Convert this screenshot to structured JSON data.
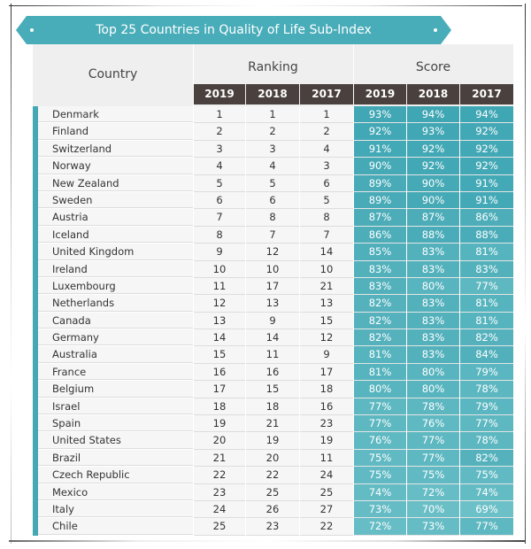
{
  "title": "Top 25 Countries in Quality of Life Sub-Index",
  "headers": {
    "country": "Country",
    "ranking": "Ranking",
    "score": "Score",
    "years": [
      "2019",
      "2018",
      "2017"
    ]
  },
  "colors": {
    "accent": "#49adb9",
    "header_dark": "#4a403d",
    "score_high": "#3fa6b3",
    "score_low": "#6cc0c8"
  },
  "chart_data": {
    "type": "table",
    "title": "Top 25 Countries in Quality of Life Sub-Index",
    "columns": [
      "Country",
      "Ranking 2019",
      "Ranking 2018",
      "Ranking 2017",
      "Score 2019",
      "Score 2018",
      "Score 2017"
    ],
    "rows": [
      [
        "Denmark",
        1,
        1,
        1,
        "93%",
        "94%",
        "94%"
      ],
      [
        "Finland",
        2,
        2,
        2,
        "92%",
        "93%",
        "92%"
      ],
      [
        "Switzerland",
        3,
        3,
        4,
        "91%",
        "92%",
        "92%"
      ],
      [
        "Norway",
        4,
        4,
        3,
        "90%",
        "92%",
        "92%"
      ],
      [
        "New Zealand",
        5,
        5,
        6,
        "89%",
        "90%",
        "91%"
      ],
      [
        "Sweden",
        6,
        6,
        5,
        "89%",
        "90%",
        "91%"
      ],
      [
        "Austria",
        7,
        8,
        8,
        "87%",
        "87%",
        "86%"
      ],
      [
        "Iceland",
        8,
        7,
        7,
        "86%",
        "88%",
        "88%"
      ],
      [
        "United Kingdom",
        9,
        12,
        14,
        "85%",
        "83%",
        "81%"
      ],
      [
        "Ireland",
        10,
        10,
        10,
        "83%",
        "83%",
        "83%"
      ],
      [
        "Luxembourg",
        11,
        17,
        21,
        "83%",
        "80%",
        "77%"
      ],
      [
        "Netherlands",
        12,
        13,
        13,
        "82%",
        "83%",
        "81%"
      ],
      [
        "Canada",
        13,
        9,
        15,
        "82%",
        "83%",
        "81%"
      ],
      [
        "Germany",
        14,
        14,
        12,
        "82%",
        "83%",
        "82%"
      ],
      [
        "Australia",
        15,
        11,
        9,
        "81%",
        "83%",
        "84%"
      ],
      [
        "France",
        16,
        16,
        17,
        "81%",
        "80%",
        "79%"
      ],
      [
        "Belgium",
        17,
        15,
        18,
        "80%",
        "80%",
        "78%"
      ],
      [
        "Israel",
        18,
        18,
        16,
        "77%",
        "78%",
        "79%"
      ],
      [
        "Spain",
        19,
        21,
        23,
        "77%",
        "76%",
        "77%"
      ],
      [
        "United States",
        20,
        19,
        19,
        "76%",
        "77%",
        "78%"
      ],
      [
        "Brazil",
        21,
        20,
        11,
        "75%",
        "77%",
        "82%"
      ],
      [
        "Czech Republic",
        22,
        22,
        24,
        "75%",
        "75%",
        "75%"
      ],
      [
        "Mexico",
        23,
        25,
        25,
        "74%",
        "72%",
        "74%"
      ],
      [
        "Italy",
        24,
        26,
        27,
        "73%",
        "70%",
        "69%"
      ],
      [
        "Chile",
        25,
        23,
        22,
        "72%",
        "73%",
        "77%"
      ]
    ]
  }
}
